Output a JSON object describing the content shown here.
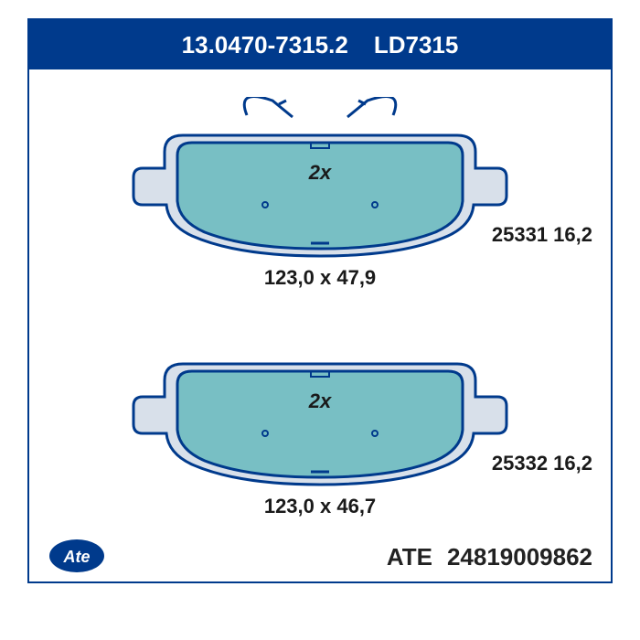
{
  "header": {
    "part_number": "13.0470-7315.2",
    "code": "LD7315",
    "bg_color": "#003a8c",
    "text_color": "#ffffff",
    "font_size": 26
  },
  "pads": [
    {
      "quantity_label": "2x",
      "dimensions": "123,0 x 47,9",
      "side_code": "25331 16,2",
      "has_clips": true,
      "pad_fill": "#78bfc4",
      "pad_stroke": "#003a8c",
      "plate_fill": "#d8e0ea",
      "friction_outline": "#003a8c"
    },
    {
      "quantity_label": "2x",
      "dimensions": "123,0 x 46,7",
      "side_code": "25332 16,2",
      "has_clips": false,
      "pad_fill": "#78bfc4",
      "pad_stroke": "#003a8c",
      "plate_fill": "#d8e0ea",
      "friction_outline": "#003a8c"
    }
  ],
  "footer": {
    "brand": "ATE",
    "catalog_number": "24819009862",
    "logo_bg": "#003a8c",
    "logo_text_color": "#ffffff",
    "text_color": "#222222",
    "font_size": 26
  },
  "styling": {
    "outer_border_color": "#003a8c",
    "dim_text_color": "#1a1a1a",
    "label_font_size": 22,
    "quantity_font_size": 22
  }
}
